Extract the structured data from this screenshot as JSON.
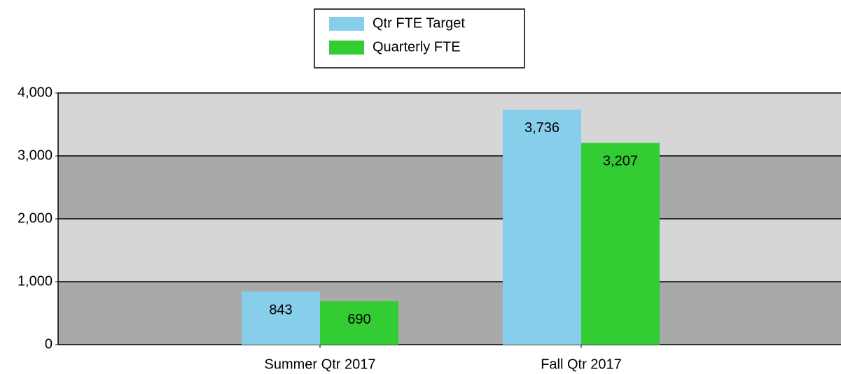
{
  "chart_data": {
    "type": "bar",
    "categories": [
      "Summer Qtr 2017",
      "Fall Qtr 2017"
    ],
    "series": [
      {
        "name": "Qtr FTE Target",
        "color": "#87ceeb",
        "values": [
          843,
          3736
        ],
        "value_labels": [
          "843",
          "3,736"
        ]
      },
      {
        "name": "Quarterly FTE",
        "color": "#33cc33",
        "values": [
          690,
          3207
        ],
        "value_labels": [
          "690",
          "3,207"
        ]
      }
    ],
    "ylim": [
      0,
      4000
    ],
    "yticks": [
      0,
      {
        "value": 1000,
        "label": "1,000"
      },
      {
        "value": 2000,
        "label": "2,000"
      },
      {
        "value": 3000,
        "label": "3,000"
      },
      {
        "value": 4000,
        "label": "4,000"
      }
    ],
    "grid": true,
    "legend": "top"
  }
}
